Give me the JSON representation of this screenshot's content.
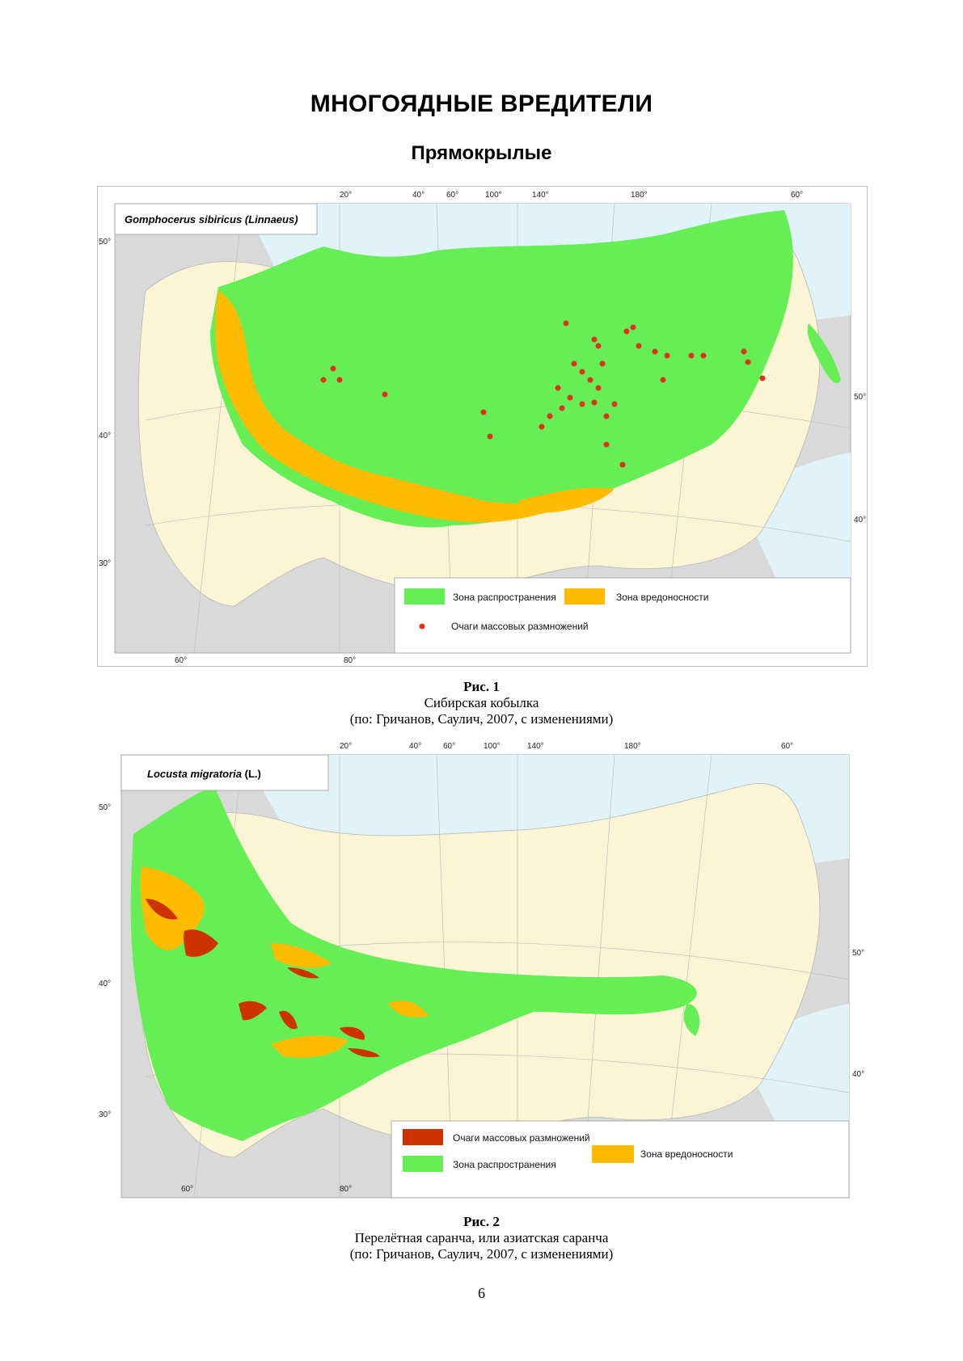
{
  "page": {
    "title": "МНОГОЯДНЫЕ ВРЕДИТЕЛИ",
    "subtitle": "Прямокрылые",
    "page_number": "6"
  },
  "colors": {
    "distribution_zone": "#66ee55",
    "harm_zone": "#ffbb00",
    "outbreak_foci_fig1": "#e03020",
    "outbreak_foci_fig2": "#cc3300",
    "land_background": "#fbf5d6",
    "other_land": "#d9d9d9",
    "water": "#dff3f8"
  },
  "figure1": {
    "species": "Gomphocerus sibiricus (Linnaeus)",
    "top_longitudes": [
      "20°",
      "40°",
      "60°",
      "100°",
      "140°",
      "180°",
      "60°"
    ],
    "bottom_longitudes": [
      "60°",
      "80°"
    ],
    "left_latitudes": [
      "50°",
      "40°",
      "30°"
    ],
    "right_latitudes": [
      "50°",
      "40°"
    ],
    "legend": {
      "distribution": "Зона распространения",
      "harm": "Зона вредоносности",
      "foci": "Очаги массовых размножений"
    },
    "caption": {
      "number": "Рис. 1",
      "name": "Сибирская кобылка",
      "source": "(по: Гричанов, Саулич, 2007, с изменениями)"
    }
  },
  "figure2": {
    "species_main": "Locusta migratori",
    "species_tail": "a",
    "species_author": "(L.)",
    "top_longitudes": [
      "20°",
      "40°",
      "60°",
      "100°",
      "140°",
      "180°",
      "60°"
    ],
    "bottom_longitudes": [
      "60°",
      "80°"
    ],
    "left_latitudes": [
      "50°",
      "40°",
      "30°"
    ],
    "right_latitudes": [
      "50°",
      "40°"
    ],
    "legend": {
      "foci": "Очаги массовых размножений",
      "distribution": "Зона распространения",
      "harm": "Зона вредоносности"
    },
    "caption": {
      "number": "Рис. 2",
      "name": "Перелётная саранча, или азиатская саранча",
      "source": "(по: Гричанов, Саулич, 2007, с изменениями)"
    }
  }
}
